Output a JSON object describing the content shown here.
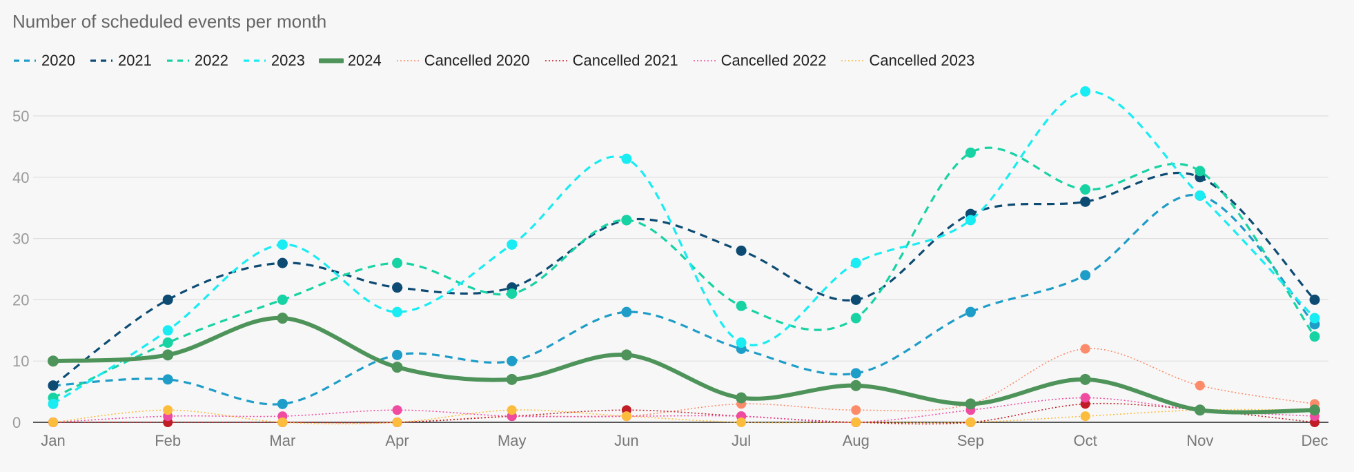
{
  "chart_data": {
    "type": "line",
    "title": "Number of scheduled events per month",
    "categories": [
      "Jan",
      "Feb",
      "Mar",
      "Apr",
      "May",
      "Jun",
      "Jul",
      "Aug",
      "Sep",
      "Oct",
      "Nov",
      "Dec"
    ],
    "ylim": [
      0,
      55
    ],
    "yticks": [
      0,
      10,
      20,
      30,
      40,
      50
    ],
    "grid": true,
    "legend_position": "top-left",
    "xlabel": "",
    "ylabel": "",
    "series": [
      {
        "name": "2020",
        "color": "#1e9dc8",
        "style": "dashed",
        "values": [
          6,
          7,
          3,
          11,
          10,
          18,
          12,
          8,
          18,
          24,
          37,
          16
        ]
      },
      {
        "name": "2021",
        "color": "#0d4b73",
        "style": "dashed",
        "values": [
          6,
          20,
          26,
          22,
          22,
          33,
          28,
          20,
          34,
          36,
          40,
          20
        ]
      },
      {
        "name": "2022",
        "color": "#17d3a3",
        "style": "dashed",
        "values": [
          4,
          13,
          20,
          26,
          21,
          33,
          19,
          17,
          44,
          38,
          41,
          14
        ]
      },
      {
        "name": "2023",
        "color": "#19ecf2",
        "style": "dashed",
        "values": [
          3,
          15,
          29,
          18,
          29,
          43,
          13,
          26,
          33,
          54,
          37,
          17
        ]
      },
      {
        "name": "2024",
        "color": "#4e945a",
        "style": "thick",
        "values": [
          10,
          11,
          17,
          9,
          7,
          11,
          4,
          6,
          3,
          7,
          2,
          2
        ]
      },
      {
        "name": "Cancelled 2020",
        "color": "#fc8b6a",
        "style": "dotted",
        "values": [
          0,
          0,
          0,
          0,
          1,
          1,
          3,
          2,
          3,
          12,
          6,
          3
        ]
      },
      {
        "name": "Cancelled 2021",
        "color": "#c01d26",
        "style": "dotted",
        "values": [
          0,
          0,
          0,
          0,
          1,
          2,
          1,
          0,
          0,
          3,
          2,
          0
        ]
      },
      {
        "name": "Cancelled 2022",
        "color": "#ef4ba0",
        "style": "dotted",
        "values": [
          0,
          1,
          1,
          2,
          1,
          1,
          1,
          0,
          2,
          4,
          2,
          1
        ]
      },
      {
        "name": "Cancelled 2023",
        "color": "#fcbc3c",
        "style": "dotted",
        "values": [
          0,
          2,
          0,
          0,
          2,
          1,
          0,
          0,
          0,
          1,
          2,
          2
        ]
      }
    ]
  }
}
